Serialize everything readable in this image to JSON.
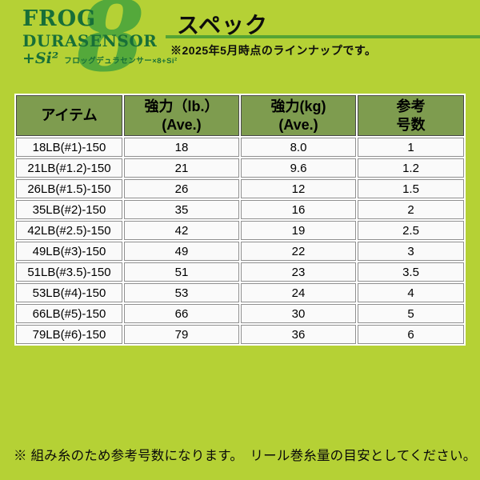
{
  "colors": {
    "background": "#b5d135",
    "table_header_bg": "#7e9c4f",
    "brand_green": "#186f38",
    "accent_green": "#54a93b",
    "underline_green": "#55a434"
  },
  "brand": {
    "line1": "FROG",
    "line2": "DURASENSOR",
    "line3": "+Si²",
    "big_glyph": "8",
    "caption": "フロッグデュラセンサー×8+Si²"
  },
  "section_header": {
    "title": "スペック",
    "note": "※2025年5月時点のラインナップです。"
  },
  "table": {
    "columns": [
      {
        "line1": "アイテム",
        "line2": ""
      },
      {
        "line1": "強力（lb.）",
        "line2": "(Ave.)"
      },
      {
        "line1": "強力(kg)",
        "line2": "(Ave.)"
      },
      {
        "line1": "参考",
        "line2": "号数"
      }
    ],
    "rows": [
      [
        "18LB(#1)-150",
        "18",
        "8.0",
        "1"
      ],
      [
        "21LB(#1.2)-150",
        "21",
        "9.6",
        "1.2"
      ],
      [
        "26LB(#1.5)-150",
        "26",
        "12",
        "1.5"
      ],
      [
        "35LB(#2)-150",
        "35",
        "16",
        "2"
      ],
      [
        "42LB(#2.5)-150",
        "42",
        "19",
        "2.5"
      ],
      [
        "49LB(#3)-150",
        "49",
        "22",
        "3"
      ],
      [
        "51LB(#3.5)-150",
        "51",
        "23",
        "3.5"
      ],
      [
        "53LB(#4)-150",
        "53",
        "24",
        "4"
      ],
      [
        "66LB(#5)-150",
        "66",
        "30",
        "5"
      ],
      [
        "79LB(#6)-150",
        "79",
        "36",
        "6"
      ]
    ]
  },
  "footer": {
    "note": "※ 組み糸のため参考号数になります。　リール巻糸量の目安としてください。"
  }
}
